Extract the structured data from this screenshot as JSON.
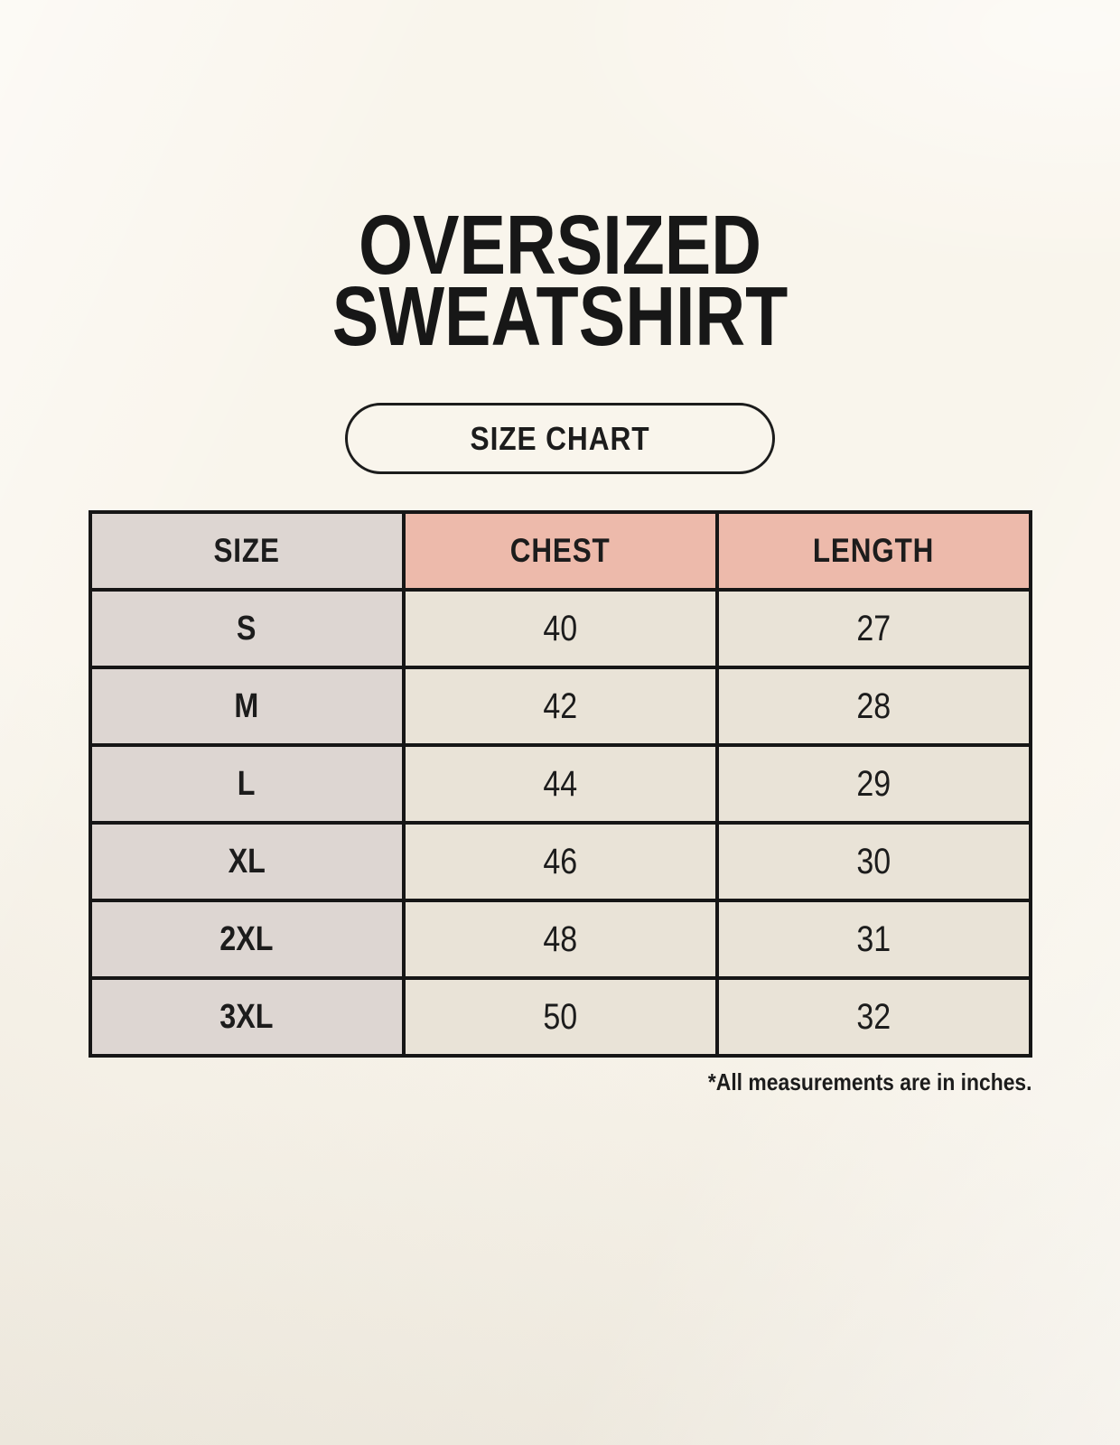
{
  "header": {
    "title_line_1": "OVERSIZED",
    "title_line_2": "SWEATSHIRT",
    "badge_label": "SIZE CHART"
  },
  "chart_data": {
    "type": "table",
    "title": "OVERSIZED SWEATSHIRT",
    "subtitle": "SIZE CHART",
    "columns": [
      "SIZE",
      "CHEST",
      "LENGTH"
    ],
    "rows": [
      [
        "S",
        "40",
        "27"
      ],
      [
        "M",
        "42",
        "28"
      ],
      [
        "L",
        "44",
        "29"
      ],
      [
        "XL",
        "46",
        "30"
      ],
      [
        "2XL",
        "48",
        "31"
      ],
      [
        "3XL",
        "50",
        "32"
      ]
    ],
    "footnote": "*All measurements are in inches."
  },
  "colors": {
    "background": "#f9f5ec",
    "grid_line": "#161616",
    "header_accent": "#edbaab",
    "neutral_cell": "#ddd6d2",
    "data_cell": "#e9e3d7",
    "text": "#1c1c1c"
  }
}
